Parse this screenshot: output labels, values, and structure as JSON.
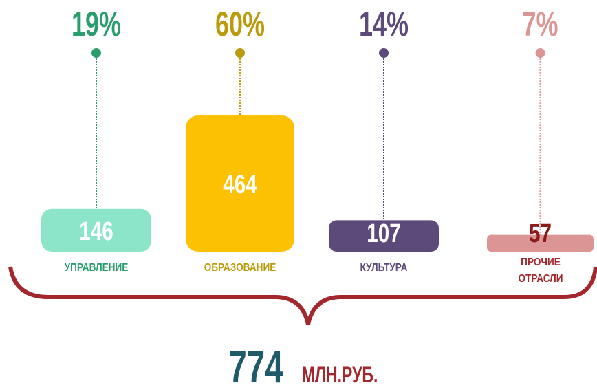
{
  "chart_data": {
    "type": "bar",
    "categories": [
      "УПРАВЛЕНИЕ",
      "ОБРАЗОВАНИЕ",
      "КУЛЬТУРА",
      "ПРОЧИЕ ОТРАСЛИ"
    ],
    "values": [
      146,
      464,
      107,
      57
    ],
    "shares": [
      19,
      60,
      14,
      7
    ],
    "share_labels": [
      "19%",
      "60%",
      "14%",
      "7%"
    ],
    "colors": [
      "#8de5c9",
      "#fbc102",
      "#5c4a7a",
      "#dc9595"
    ],
    "share_colors": [
      "#2a9d6e",
      "#b99b0c",
      "#5c4a7a",
      "#dc9595"
    ],
    "label_colors": [
      "#2a9d6e",
      "#b99b0c",
      "#5c4a7a",
      "#a3282e"
    ],
    "value_text_colors": [
      "#ffffff",
      "#ffffff",
      "#ffffff",
      "#8b1a1a"
    ],
    "total": 774,
    "total_unit": "МЛН.РУБ."
  }
}
